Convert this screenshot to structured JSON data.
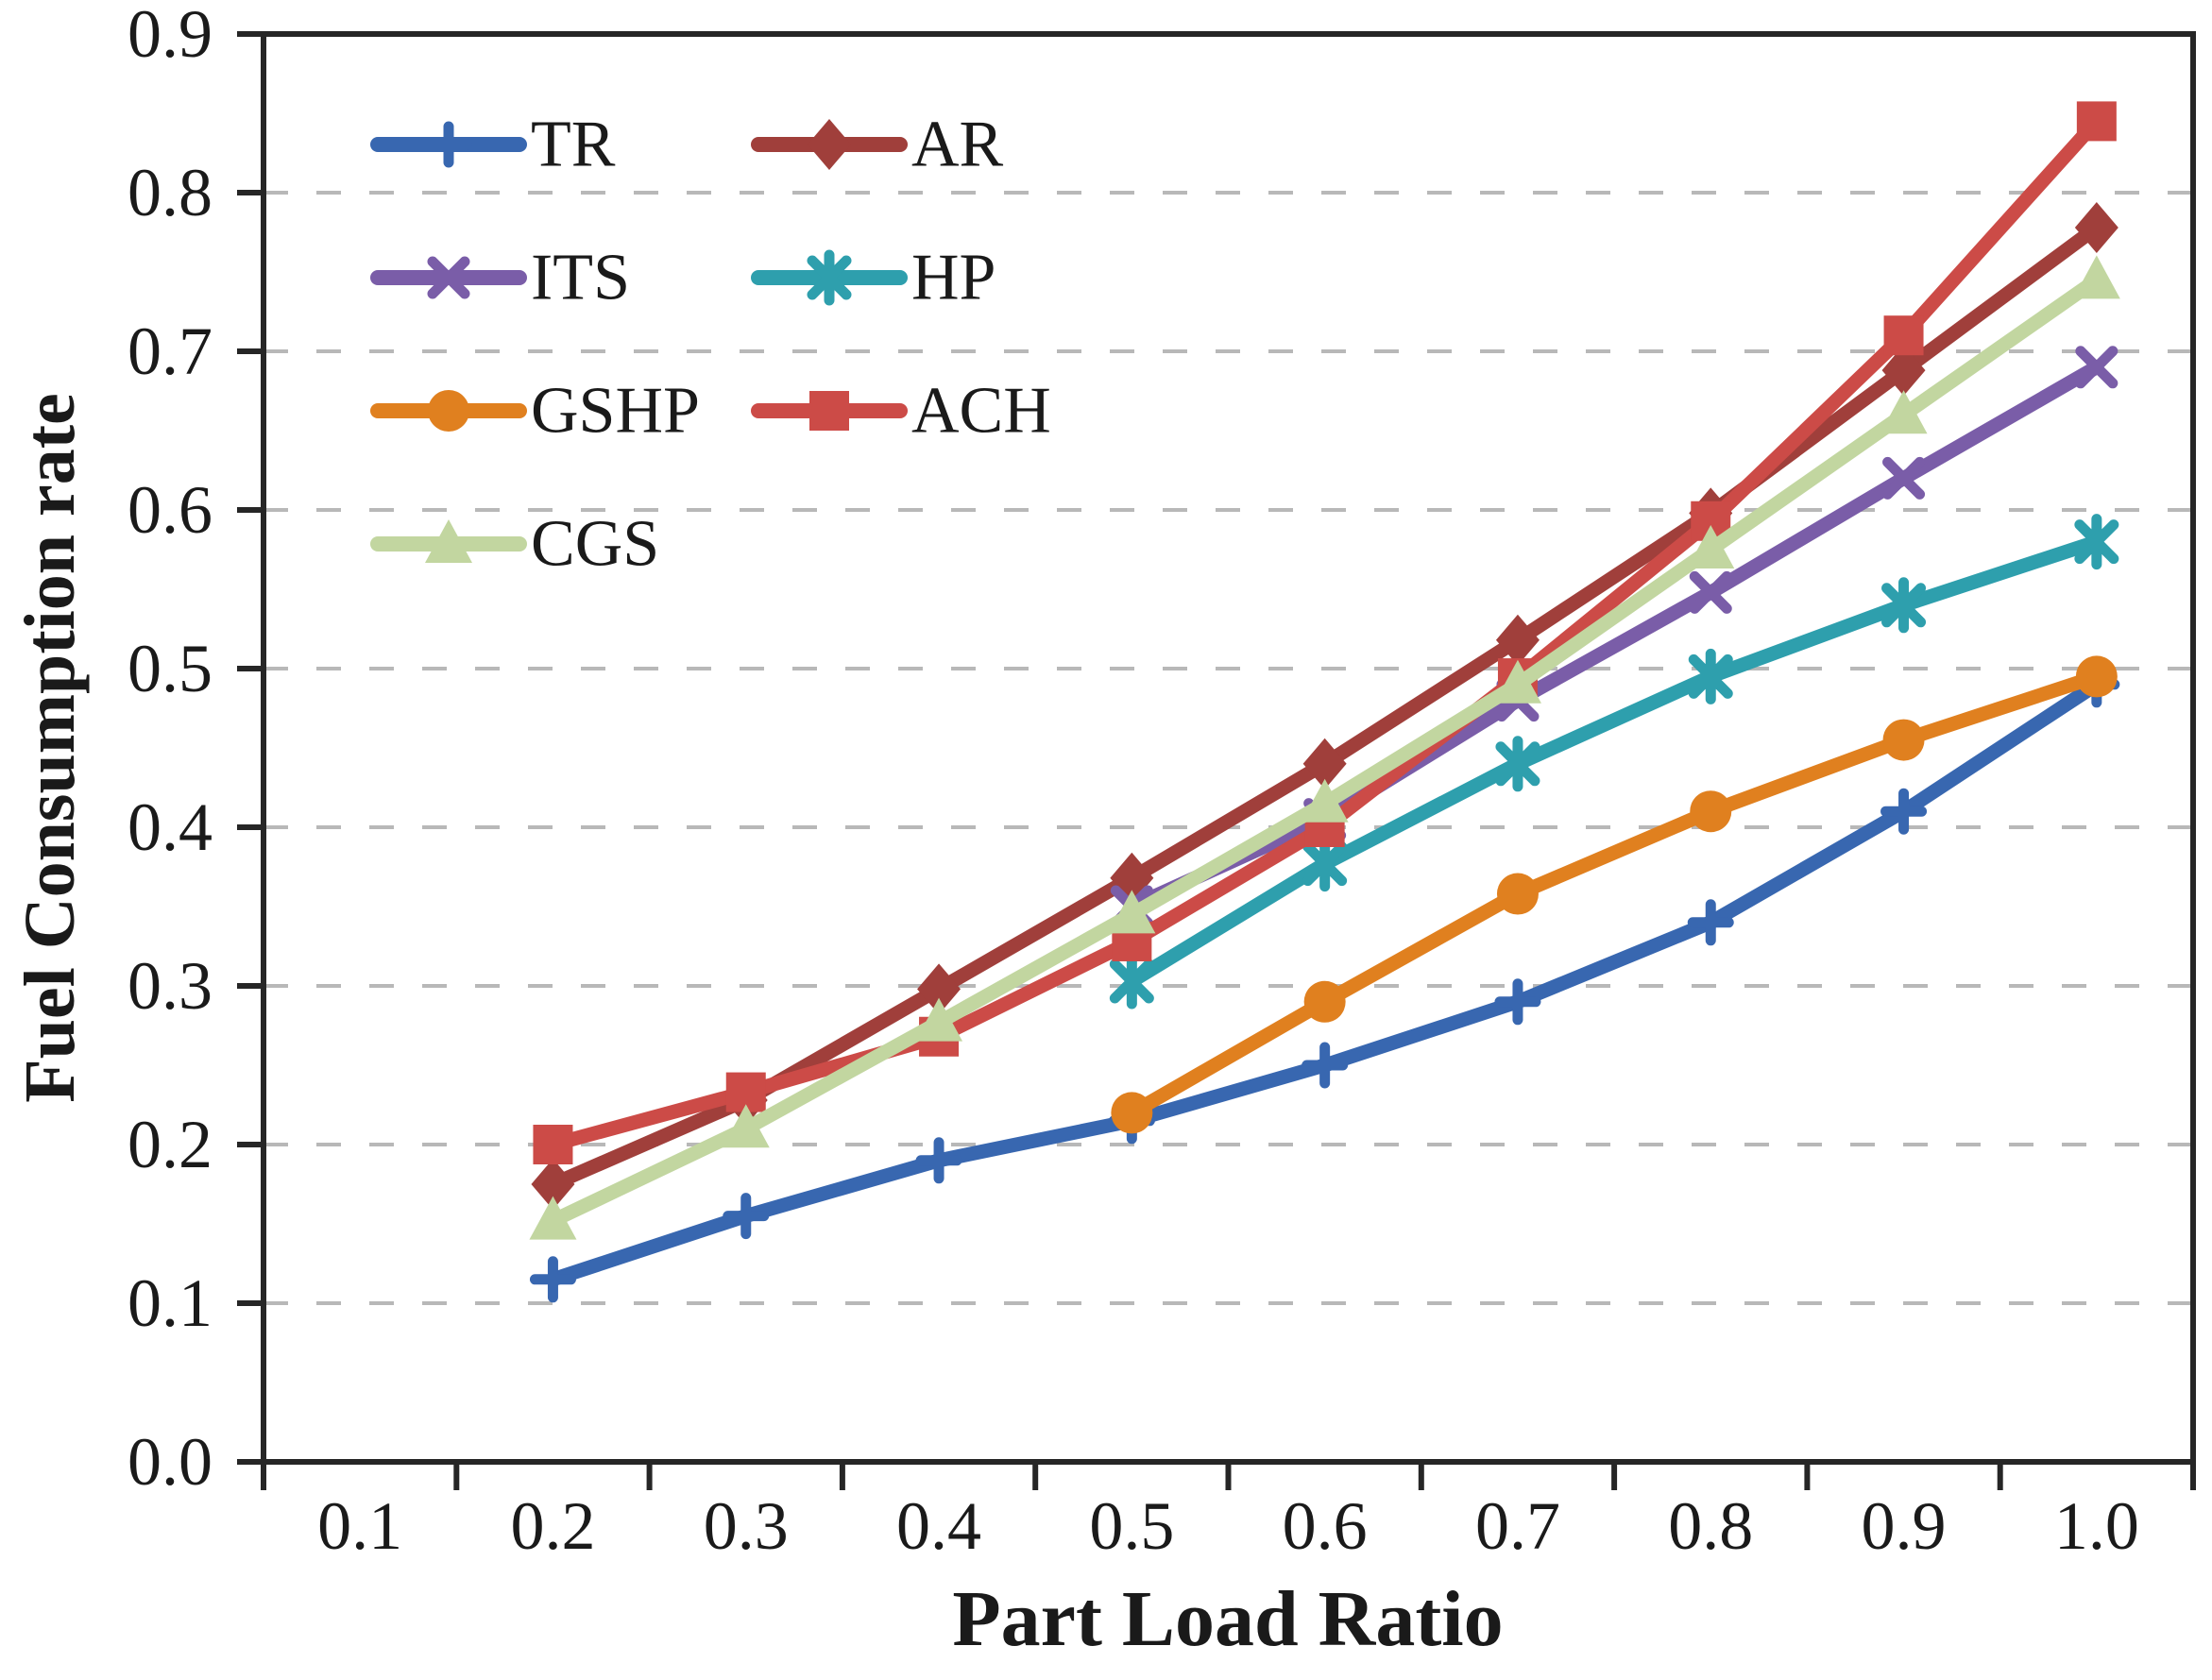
{
  "figure": {
    "x_axis_title": "Part Load Ratio",
    "y_axis_title": "Fuel Consumption rate"
  },
  "chart_data": {
    "type": "line",
    "title": "",
    "xlabel": "Part Load Ratio",
    "ylabel": "Fuel Consumption rate",
    "x_tick_labels": [
      "0.1",
      "0.2",
      "0.3",
      "0.4",
      "0.5",
      "0.6",
      "0.7",
      "0.8",
      "0.9",
      "1.0"
    ],
    "x_tick_values": [
      0.1,
      0.2,
      0.3,
      0.4,
      0.5,
      0.6,
      0.7,
      0.8,
      0.9,
      1.0
    ],
    "y_tick_labels": [
      "0.0",
      "0.1",
      "0.2",
      "0.3",
      "0.4",
      "0.5",
      "0.6",
      "0.7",
      "0.8",
      "0.9"
    ],
    "y_tick_values": [
      0.0,
      0.1,
      0.2,
      0.3,
      0.4,
      0.5,
      0.6,
      0.7,
      0.8,
      0.9
    ],
    "ylim": [
      0.0,
      0.9
    ],
    "grid": "horizontal-dashed",
    "grid_color": "#b8b8b8",
    "axis_color": "#262626",
    "legend_position": "top-left-inside",
    "legend_columns": 2,
    "series": [
      {
        "name": "TR",
        "color": "#3867b0",
        "marker": "plus",
        "x": [
          0.2,
          0.3,
          0.4,
          0.5,
          0.6,
          0.7,
          0.8,
          0.9,
          1.0
        ],
        "values": [
          0.115,
          0.155,
          0.19,
          0.215,
          0.25,
          0.29,
          0.34,
          0.41,
          0.49
        ]
      },
      {
        "name": "AR",
        "color": "#a03f3b",
        "marker": "diamond",
        "x": [
          0.2,
          0.3,
          0.4,
          0.5,
          0.6,
          0.7,
          0.8,
          0.9,
          1.0
        ],
        "values": [
          0.175,
          0.228,
          0.298,
          0.368,
          0.44,
          0.518,
          0.598,
          0.688,
          0.778
        ]
      },
      {
        "name": "ITS",
        "color": "#7a5da8",
        "marker": "x",
        "x": [
          0.5,
          0.6,
          0.7,
          0.8,
          0.9,
          1.0
        ],
        "values": [
          0.35,
          0.405,
          0.48,
          0.548,
          0.62,
          0.69
        ]
      },
      {
        "name": "HP",
        "color": "#2e9fad",
        "marker": "asterisk",
        "x": [
          0.5,
          0.6,
          0.7,
          0.8,
          0.9,
          1.0
        ],
        "values": [
          0.303,
          0.377,
          0.44,
          0.495,
          0.54,
          0.58
        ]
      },
      {
        "name": "GSHP",
        "color": "#e0801f",
        "marker": "circle",
        "x": [
          0.5,
          0.6,
          0.7,
          0.8,
          0.9,
          1.0
        ],
        "values": [
          0.22,
          0.29,
          0.358,
          0.41,
          0.455,
          0.495
        ]
      },
      {
        "name": "ACH",
        "color": "#cc4b47",
        "marker": "square",
        "x": [
          0.2,
          0.3,
          0.4,
          0.5,
          0.6,
          0.7,
          0.8,
          0.9,
          1.0
        ],
        "values": [
          0.2,
          0.233,
          0.268,
          0.328,
          0.4,
          0.494,
          0.593,
          0.71,
          0.845
        ]
      },
      {
        "name": "CGS",
        "color": "#c2d6a0",
        "marker": "triangle",
        "x": [
          0.2,
          0.3,
          0.4,
          0.5,
          0.6,
          0.7,
          0.8,
          0.9,
          1.0
        ],
        "values": [
          0.152,
          0.21,
          0.277,
          0.345,
          0.415,
          0.49,
          0.575,
          0.66,
          0.745
        ]
      }
    ],
    "legend_order": [
      "TR",
      "AR",
      "ITS",
      "HP",
      "GSHP",
      "ACH",
      "CGS"
    ],
    "draw_order": [
      "TR",
      "AR",
      "ITS",
      "HP",
      "ACH",
      "CGS",
      "GSHP"
    ]
  }
}
